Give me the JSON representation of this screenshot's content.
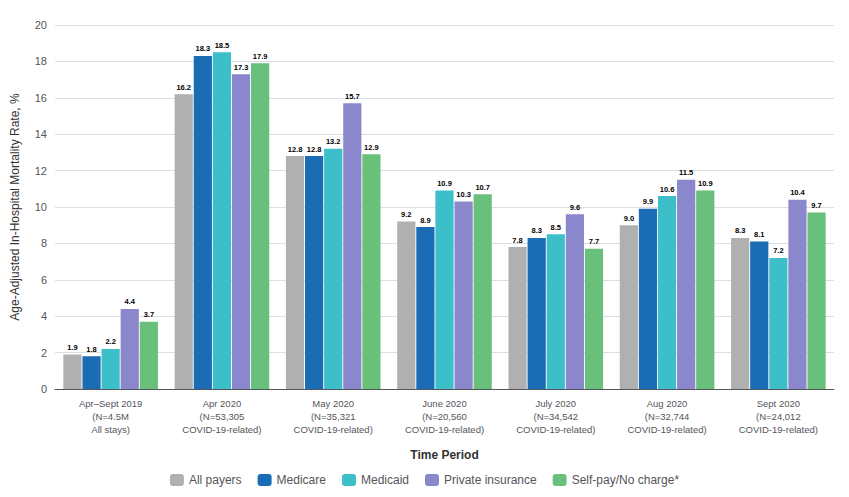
{
  "chart_data": {
    "type": "bar",
    "xlabel": "Time Period",
    "ylabel": "Age-Adjusted In-Hospital Mortality Rate, %",
    "categories": [
      "Apr–Sept 2019\n(N=4.5M\nAll stays)",
      "Apr 2020\n(N=53,305\nCOVID-19-related)",
      "May 2020\n(N=35,321\nCOVID-19-related)",
      "June 2020\n(N=20,560\nCOVID-19-related)",
      "July 2020\n(N=34,542\nCOVID-19-related)",
      "Aug 2020\n(N=32,744\nCOVID-19-related)",
      "Sept 2020\n(N=24,012\nCOVID-19-related)"
    ],
    "series": [
      {
        "name": "All payers",
        "color": "#b0b0b0",
        "values": [
          1.9,
          16.2,
          12.8,
          9.2,
          7.8,
          9.0,
          8.3
        ],
        "value_labels": [
          "1.9",
          "16.2",
          "12.8",
          "9.2",
          "7.8",
          "9.0",
          "8.3"
        ]
      },
      {
        "name": "Medicare",
        "color": "#1a6cb5",
        "values": [
          1.8,
          18.3,
          12.8,
          8.9,
          8.3,
          9.9,
          8.1
        ],
        "value_labels": [
          "1.8",
          "18.3",
          "12.8",
          "8.9",
          "8.3",
          "9.9",
          "8.1"
        ]
      },
      {
        "name": "Medicaid",
        "color": "#3dbfc9",
        "values": [
          2.2,
          18.5,
          13.2,
          10.9,
          8.5,
          10.6,
          7.2
        ],
        "value_labels": [
          "2.2",
          "18.5",
          "13.2",
          "10.9",
          "8.5",
          "10.6",
          "7.2"
        ]
      },
      {
        "name": "Private insurance",
        "color": "#8b87cc",
        "values": [
          4.4,
          17.3,
          15.7,
          10.3,
          9.6,
          11.5,
          10.4
        ],
        "value_labels": [
          "4.4",
          "17.3",
          "15.7",
          "10.3",
          "9.6",
          "11.5",
          "10.4"
        ]
      },
      {
        "name": "Self-pay/No charge*",
        "color": "#68c07a",
        "values": [
          3.7,
          17.9,
          12.9,
          10.7,
          7.7,
          10.9,
          9.7
        ],
        "value_labels": [
          "3.7",
          "17.9",
          "12.9",
          "10.7",
          "7.7",
          "10.9",
          "9.7"
        ]
      }
    ],
    "ylim": [
      0,
      20
    ],
    "yticks": [
      0,
      2,
      4,
      6,
      8,
      10,
      12,
      14,
      16,
      18,
      20
    ],
    "grid": true,
    "legend": "bottom",
    "data_labels": true
  }
}
